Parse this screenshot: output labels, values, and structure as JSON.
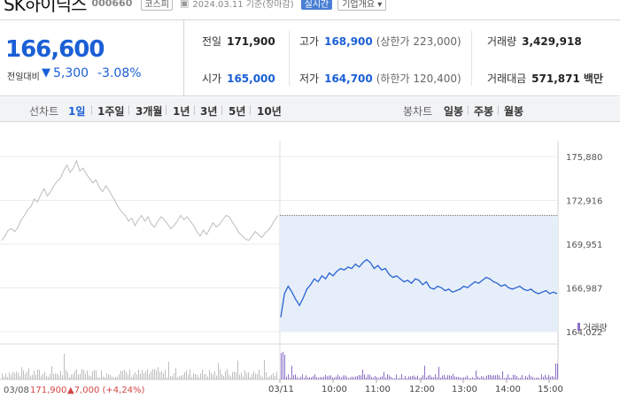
{
  "header": {
    "name": "SK하이닉스",
    "code": "000660",
    "market": "코스피",
    "date": "2024.03.11 기준(장마감)",
    "live_label": "실시간",
    "info_label": "기업개요"
  },
  "quote": {
    "price": "166,600",
    "change_label": "전일대비",
    "change_arrow": "▼",
    "change_value": "5,300",
    "change_pct": "-3.08%"
  },
  "stats": {
    "prev_label": "전일",
    "prev_value": "171,900",
    "open_label": "시가",
    "open_value": "165,000",
    "high_label": "고가",
    "high_value": "168,900",
    "high_sub": "(상한가 223,000)",
    "low_label": "저가",
    "low_value": "164,700",
    "low_sub": "(하한가 120,400)",
    "volume_label": "거래량",
    "volume_value": "3,429,918",
    "amount_label": "거래대금",
    "amount_value": "571,871",
    "amount_unit": "백만"
  },
  "period_bar": {
    "line_label": "선차트",
    "line_options": [
      "1일",
      "1주일",
      "3개월",
      "1년",
      "3년",
      "5년",
      "10년"
    ],
    "candle_label": "봉차트",
    "candle_options": [
      "일봉",
      "주봉",
      "월봉"
    ]
  },
  "chart_data": {
    "type": "line",
    "y_ticks": [
      "175,880",
      "172,916",
      "169,951",
      "166,987",
      "164,022"
    ],
    "ylim": [
      164022,
      175880
    ],
    "x_ticks": [
      "03/11",
      "10:00",
      "11:00",
      "12:00",
      "13:00",
      "14:00",
      "15:00"
    ],
    "prev_day_label": "03/08",
    "prev_day_close": "171,900",
    "prev_day_change": "▲7,000 (+4,24%)",
    "volume_label": "거래량",
    "prev_close_value": 171900,
    "series": [
      {
        "name": "03/08",
        "values": [
          170200,
          170500,
          170900,
          171000,
          170800,
          171100,
          171600,
          171900,
          172300,
          172500,
          173000,
          172800,
          173300,
          173700,
          173200,
          173500,
          173900,
          174200,
          174400,
          174900,
          175300,
          174800,
          175100,
          175600,
          174900,
          175100,
          174700,
          174400,
          174100,
          174300,
          173800,
          173500,
          173900,
          173600,
          173200,
          172800,
          172400,
          172100,
          171900,
          171500,
          171700,
          171200,
          171600,
          171900,
          171500,
          171800,
          171300,
          171100,
          171500,
          171800,
          171600,
          171300,
          171000,
          171200,
          171500,
          171900,
          171600,
          171800,
          171500,
          171200,
          170800,
          170500,
          170900,
          170600,
          171000,
          171400,
          171100,
          171300,
          171600,
          171900,
          171800,
          171400,
          171100,
          170700,
          170500,
          170300,
          170200,
          170500,
          170800,
          170600,
          170400,
          170700,
          170900,
          171200,
          171600,
          171900
        ]
      },
      {
        "name": "03/11",
        "values": [
          165000,
          166600,
          167100,
          166700,
          166200,
          165800,
          166300,
          166900,
          167200,
          167600,
          167400,
          167800,
          167600,
          168000,
          167800,
          168100,
          168300,
          168200,
          168400,
          168300,
          168600,
          168400,
          168700,
          168900,
          168700,
          168300,
          168500,
          168200,
          168300,
          167900,
          167700,
          167800,
          167600,
          167400,
          167500,
          167300,
          167600,
          167500,
          167200,
          167400,
          167000,
          166900,
          167100,
          167000,
          166800,
          166900,
          166700,
          166800,
          166900,
          167100,
          167000,
          167200,
          167400,
          167300,
          167500,
          167700,
          167600,
          167400,
          167300,
          167100,
          167200,
          167000,
          166900,
          167000,
          167100,
          166900,
          166800,
          166900,
          166700,
          166600,
          166700,
          166800,
          166600,
          166700,
          166600
        ]
      }
    ]
  }
}
